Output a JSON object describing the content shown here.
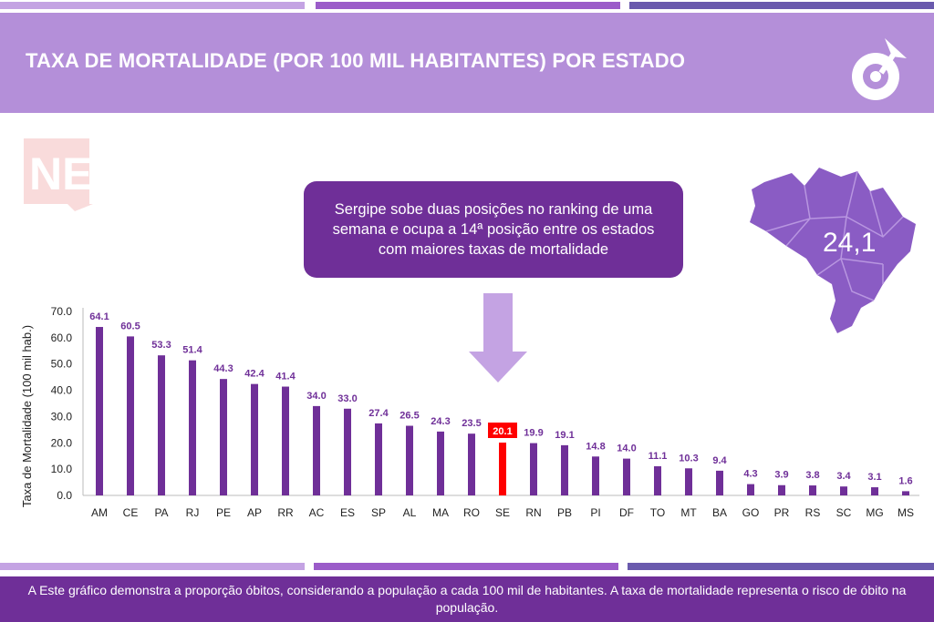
{
  "header": {
    "title": "TAXA DE MORTALIDADE (POR 100 MIL HABITANTES) POR ESTADO"
  },
  "callout": {
    "text": "Sergipe sobe duas posições no ranking de uma semana e  ocupa a 14ª posição  entre os estados com maiores taxas de mortalidade"
  },
  "map": {
    "value": "24,1"
  },
  "watermark": {
    "text": "NE"
  },
  "footer": {
    "text": "A Este gráfico demonstra a proporção óbitos, considerando a população a cada 100 mil de habitantes. A taxa de mortalidade representa o risco de óbito na população."
  },
  "colors": {
    "bar": "#6f2f98",
    "highlight": "#ff0000",
    "header": "#b48fd9",
    "dark": "#6f2f98",
    "light": "#c4a3e3"
  },
  "chart_data": {
    "type": "bar",
    "title": "TAXA DE MORTALIDADE (POR 100 MIL HABITANTES) POR ESTADO",
    "xlabel": "",
    "ylabel": "Taxa de Mortalidade (100 mil hab.)",
    "ylim": [
      0,
      70
    ],
    "yticks": [
      "0.0",
      "10.0",
      "20.0",
      "30.0",
      "40.0",
      "50.0",
      "60.0",
      "70.0"
    ],
    "highlight": "SE",
    "categories": [
      "AM",
      "CE",
      "PA",
      "RJ",
      "PE",
      "AP",
      "RR",
      "AC",
      "ES",
      "SP",
      "AL",
      "MA",
      "RO",
      "SE",
      "RN",
      "PB",
      "PI",
      "DF",
      "TO",
      "MT",
      "BA",
      "GO",
      "PR",
      "RS",
      "SC",
      "MG",
      "MS"
    ],
    "values": [
      64.1,
      60.5,
      53.3,
      51.4,
      44.3,
      42.4,
      41.4,
      34.0,
      33.0,
      27.4,
      26.5,
      24.3,
      23.5,
      20.1,
      19.9,
      19.1,
      14.8,
      14.0,
      11.1,
      10.3,
      9.4,
      4.3,
      3.9,
      3.8,
      3.4,
      3.1,
      1.6
    ]
  }
}
